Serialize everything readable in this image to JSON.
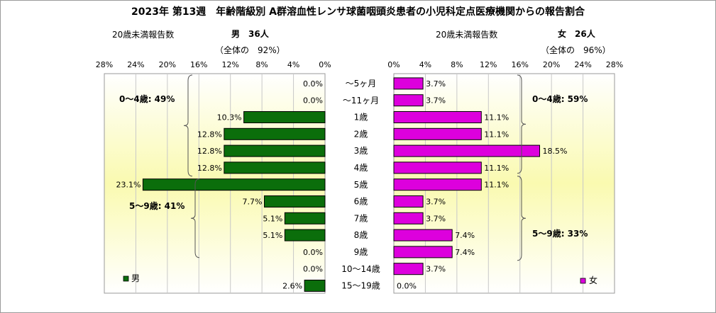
{
  "title": "2023年 第13週　年齢階級別 A群溶血性レンサ球菌咽頭炎患者の小児科定点医療機関からの報告割合",
  "left": {
    "under20_label": "20歳未満報告数",
    "sex_count": "男　36人",
    "overall": "（全体の　92%）",
    "legend": "男",
    "group_04": "0～4歳: 49%",
    "group_59": "5～9歳: 41%"
  },
  "right": {
    "under20_label": "20歳未満報告数",
    "sex_count": "女　26人",
    "overall": "（全体の　96%）",
    "legend": "女",
    "group_04": "0～4歳: 59%",
    "group_59": "5～9歳: 33%"
  },
  "colors": {
    "male": "#0b6e0b",
    "female": "#dd00dd",
    "bg_top": "#ffffff",
    "bg_mid": "#fafab0"
  },
  "chart_data": {
    "type": "bar",
    "categories": [
      "～5ヶ月",
      "～11ヶ月",
      "1歳",
      "2歳",
      "3歳",
      "4歳",
      "5歳",
      "6歳",
      "7歳",
      "8歳",
      "9歳",
      "10～14歳",
      "15～19歳"
    ],
    "series": [
      {
        "name": "男",
        "values": [
          0.0,
          0.0,
          10.3,
          12.8,
          12.8,
          12.8,
          23.1,
          7.7,
          5.1,
          5.1,
          0.0,
          0.0,
          2.6
        ],
        "labels": [
          "0.0%",
          "0.0%",
          "10.3%",
          "12.8%",
          "12.8%",
          "12.8%",
          "23.1%",
          "7.7%",
          "5.1%",
          "5.1%",
          "0.0%",
          "0.0%",
          "2.6%"
        ]
      },
      {
        "name": "女",
        "values": [
          3.7,
          3.7,
          11.1,
          11.1,
          18.5,
          11.1,
          11.1,
          3.7,
          3.7,
          7.4,
          7.4,
          3.7,
          0.0
        ],
        "labels": [
          "3.7%",
          "3.7%",
          "11.1%",
          "11.1%",
          "18.5%",
          "11.1%",
          "11.1%",
          "3.7%",
          "3.7%",
          "7.4%",
          "7.4%",
          "3.7%",
          "0.0%"
        ]
      }
    ],
    "ticks": [
      "28%",
      "24%",
      "20%",
      "16%",
      "12%",
      "8%",
      "4%",
      "0%"
    ],
    "ticks_right": [
      "0%",
      "4%",
      "8%",
      "12%",
      "16%",
      "20%",
      "24%",
      "28%"
    ],
    "xlim": [
      0,
      28
    ],
    "grid": true,
    "legend_position": "bottom"
  }
}
